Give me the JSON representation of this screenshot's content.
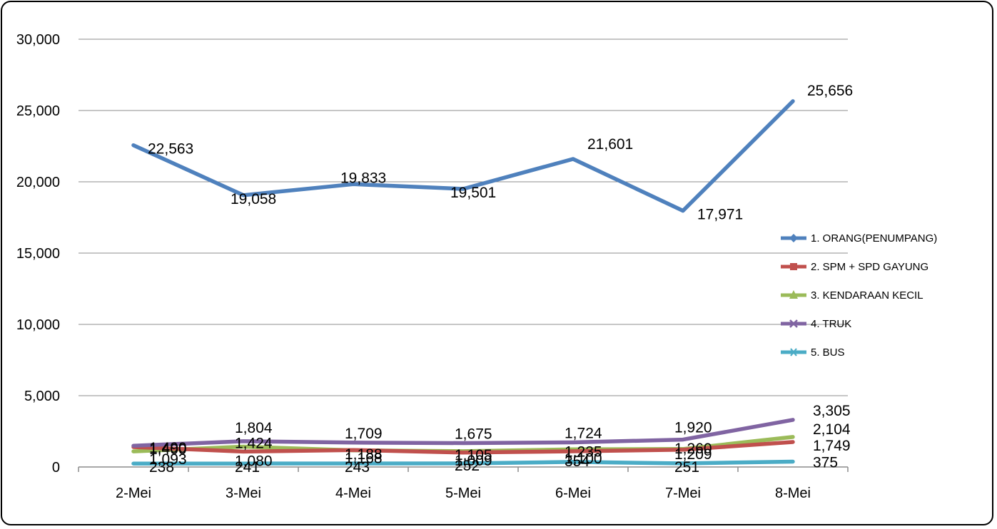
{
  "chart_data": {
    "type": "line",
    "title": "",
    "xlabel": "",
    "ylabel": "",
    "categories": [
      "2-Mei",
      "3-Mei",
      "4-Mei",
      "5-Mei",
      "6-Mei",
      "7-Mei",
      "8-Mei"
    ],
    "ylim": [
      0,
      30000
    ],
    "yticks": [
      "0",
      "5,000",
      "10,000",
      "15,000",
      "20,000",
      "25,000",
      "30,000"
    ],
    "grid": true,
    "legend_position": "right",
    "series": [
      {
        "name": "1. ORANG(PENUMPANG)",
        "color": "#4F81BD",
        "marker": "diamond",
        "values": [
          22563,
          19058,
          19833,
          19501,
          21601,
          17971,
          25656
        ],
        "labels": [
          "22,563",
          "19,058",
          "19,833",
          "19,501",
          "21,601",
          "17,971",
          "25,656"
        ]
      },
      {
        "name": "2. SPM + SPD GAYUNG",
        "color": "#C0504D",
        "marker": "square",
        "values": [
          1400,
          1080,
          1188,
          1009,
          1100,
          1209,
          1749
        ],
        "labels": [
          "1,400",
          "1,080",
          "1,188",
          "1,009",
          "1,100",
          "1,209",
          "1,749"
        ]
      },
      {
        "name": "3. KENDARAAN KECIL",
        "color": "#9BBB59",
        "marker": "triangle",
        "values": [
          1093,
          1424,
          1168,
          1105,
          1235,
          1260,
          2104
        ],
        "labels": [
          "1,093",
          "1,424",
          "1,168",
          "1,105",
          "1,235",
          "1,260",
          "2,104"
        ]
      },
      {
        "name": "4. TRUK",
        "color": "#8064A2",
        "marker": "x",
        "values": [
          1490,
          1804,
          1709,
          1675,
          1724,
          1920,
          3305
        ],
        "labels": [
          "1,490",
          "1,804",
          "1,709",
          "1,675",
          "1,724",
          "1,920",
          "3,305"
        ]
      },
      {
        "name": "5. BUS",
        "color": "#4BACC6",
        "marker": "star",
        "values": [
          238,
          241,
          243,
          252,
          354,
          251,
          375
        ],
        "labels": [
          "238",
          "241",
          "243",
          "252",
          "354",
          "251",
          "375"
        ]
      }
    ]
  }
}
